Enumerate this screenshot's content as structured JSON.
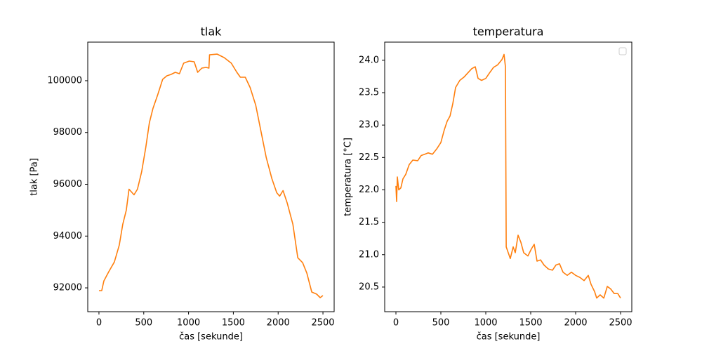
{
  "chart_data": [
    {
      "type": "line",
      "title": "tlak",
      "x_label": "čas [sekunde]",
      "y_label": "tlak [Pa]",
      "xlim": [
        -125,
        2625
      ],
      "ylim": [
        91080,
        101490
      ],
      "xticks": [
        0,
        500,
        1000,
        1500,
        2000,
        2500
      ],
      "yticks": [
        92000,
        94000,
        96000,
        98000,
        100000
      ],
      "x": [
        0,
        31,
        55,
        109,
        172,
        227,
        266,
        305,
        336,
        391,
        430,
        477,
        523,
        563,
        602,
        656,
        711,
        758,
        805,
        852,
        898,
        945,
        1008,
        1063,
        1102,
        1148,
        1195,
        1227,
        1234,
        1320,
        1398,
        1477,
        1539,
        1578,
        1633,
        1688,
        1750,
        1805,
        1867,
        1930,
        1984,
        2016,
        2055,
        2102,
        2164,
        2219,
        2273,
        2320,
        2375,
        2430,
        2469,
        2500
      ],
      "series": [
        {
          "color": "#ff7f0e",
          "values": [
            91892,
            91892,
            92270,
            92622,
            93000,
            93649,
            94459,
            95000,
            95811,
            95595,
            95811,
            96486,
            97432,
            98378,
            98919,
            99459,
            100054,
            100189,
            100243,
            100324,
            100270,
            100676,
            100757,
            100730,
            100324,
            100486,
            100514,
            100486,
            101000,
            101027,
            100892,
            100676,
            100324,
            100135,
            100135,
            99730,
            99054,
            98108,
            97027,
            96216,
            95676,
            95541,
            95757,
            95270,
            94459,
            93162,
            92973,
            92568,
            91838,
            91757,
            91622,
            91703
          ]
        }
      ]
    },
    {
      "type": "line",
      "title": "temperatura",
      "x_label": "čas [sekunde]",
      "y_label": "temperatura [°C]",
      "xlim": [
        -125,
        2625
      ],
      "ylim": [
        20.12,
        24.28
      ],
      "legend": "upper right",
      "xticks": [
        0,
        500,
        1000,
        1500,
        2000,
        2500
      ],
      "yticks": [
        20.5,
        {
          "value": 21,
          "label": "21.0"
        },
        21.5,
        {
          "value": 22,
          "label": "22.0"
        },
        22.5,
        {
          "value": 23,
          "label": "23.0"
        },
        23.5,
        {
          "value": 24,
          "label": "24.0"
        }
      ],
      "x": [
        0,
        8,
        16,
        31,
        55,
        78,
        109,
        148,
        188,
        242,
        281,
        320,
        359,
        406,
        453,
        500,
        539,
        570,
        602,
        633,
        664,
        711,
        758,
        797,
        844,
        883,
        914,
        953,
        1000,
        1039,
        1086,
        1133,
        1180,
        1203,
        1219,
        1227,
        1250,
        1273,
        1305,
        1328,
        1359,
        1391,
        1422,
        1469,
        1508,
        1539,
        1570,
        1609,
        1648,
        1695,
        1742,
        1781,
        1820,
        1859,
        1906,
        1953,
        2000,
        2047,
        2094,
        2141,
        2172,
        2211,
        2234,
        2273,
        2313,
        2352,
        2391,
        2430,
        2469,
        2500
      ],
      "series": [
        {
          "color": "#ff7f0e",
          "values": [
            22.06,
            21.82,
            22.2,
            22.0,
            22.03,
            22.17,
            22.24,
            22.39,
            22.46,
            22.45,
            22.53,
            22.55,
            22.57,
            22.55,
            22.63,
            22.73,
            22.93,
            23.06,
            23.14,
            23.33,
            23.58,
            23.69,
            23.74,
            23.8,
            23.87,
            23.9,
            23.72,
            23.69,
            23.72,
            23.8,
            23.89,
            23.93,
            24.01,
            24.09,
            23.9,
            21.12,
            21.03,
            20.94,
            21.12,
            21.03,
            21.3,
            21.19,
            21.03,
            20.98,
            21.09,
            21.16,
            20.9,
            20.92,
            20.84,
            20.78,
            20.76,
            20.84,
            20.86,
            20.73,
            20.68,
            20.73,
            20.68,
            20.65,
            20.6,
            20.68,
            20.54,
            20.43,
            20.33,
            20.38,
            20.33,
            20.51,
            20.47,
            20.4,
            20.4,
            20.33
          ]
        }
      ]
    }
  ]
}
